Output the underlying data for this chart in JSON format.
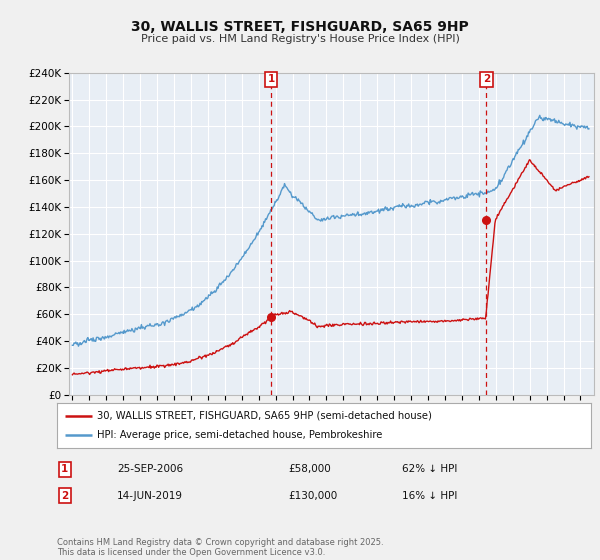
{
  "title": "30, WALLIS STREET, FISHGUARD, SA65 9HP",
  "subtitle": "Price paid vs. HM Land Registry's House Price Index (HPI)",
  "legend_line1": "30, WALLIS STREET, FISHGUARD, SA65 9HP (semi-detached house)",
  "legend_line2": "HPI: Average price, semi-detached house, Pembrokeshire",
  "transaction1_date": "25-SEP-2006",
  "transaction1_price": "£58,000",
  "transaction1_hpi": "62% ↓ HPI",
  "transaction2_date": "14-JUN-2019",
  "transaction2_price": "£130,000",
  "transaction2_hpi": "16% ↓ HPI",
  "vline1_year": 2006.73,
  "vline2_year": 2019.45,
  "transaction1_value": 58000,
  "transaction2_value": 130000,
  "ylim": [
    0,
    240000
  ],
  "xlim_start": 1994.8,
  "xlim_end": 2025.8,
  "background_color": "#f0f0f0",
  "plot_bg_color": "#e8eef5",
  "grid_color": "#ffffff",
  "red_line_color": "#cc1111",
  "blue_line_color": "#5599cc",
  "vline_color": "#cc1111",
  "footer": "Contains HM Land Registry data © Crown copyright and database right 2025.\nThis data is licensed under the Open Government Licence v3.0."
}
